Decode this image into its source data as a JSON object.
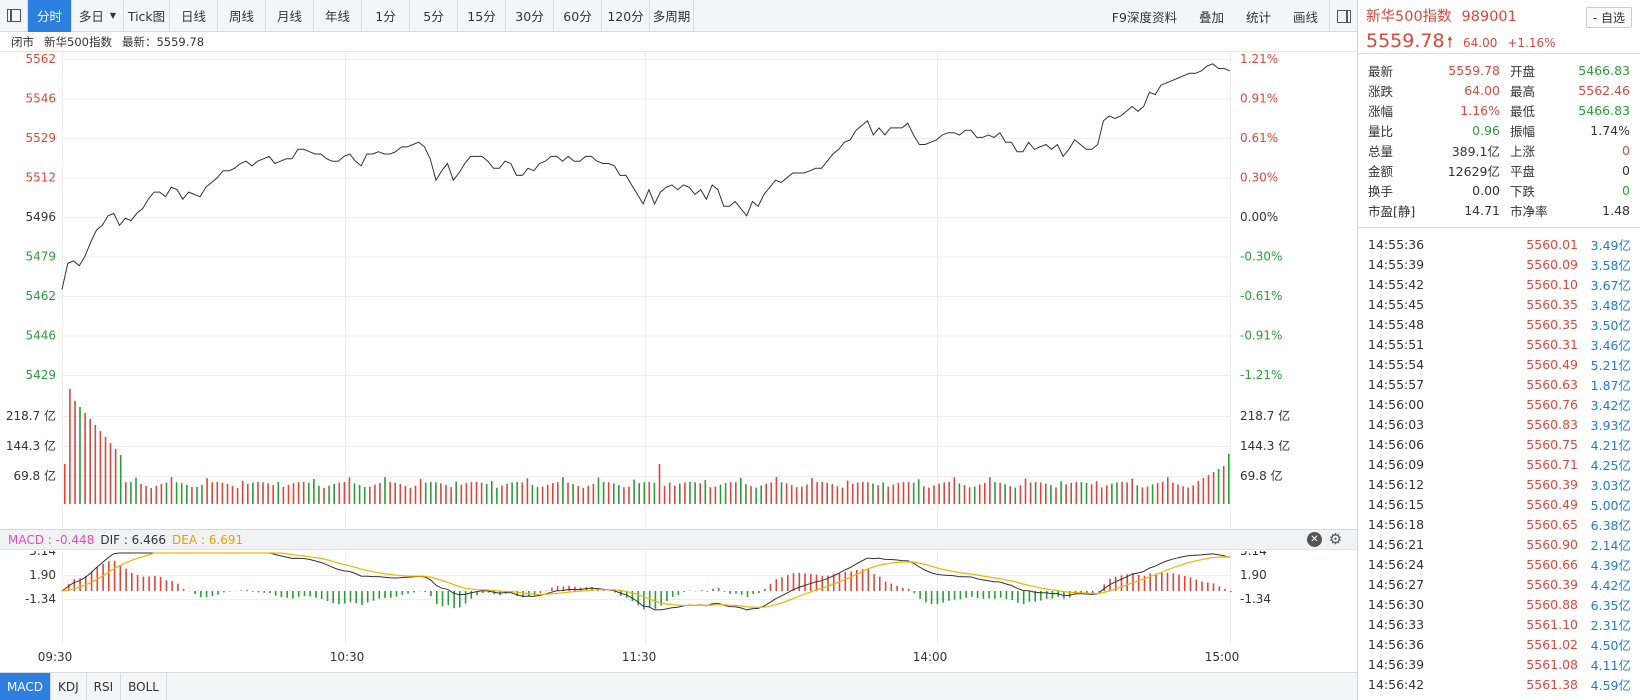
{
  "toolbar": {
    "tabs": [
      "分时",
      "多日",
      "Tick图",
      "日线",
      "周线",
      "月线",
      "年线",
      "1分",
      "5分",
      "15分",
      "30分",
      "60分",
      "120分",
      "多周期"
    ],
    "right_items": [
      "F9深度资料",
      "叠加",
      "统计",
      "画线"
    ]
  },
  "info": {
    "status": "闭市",
    "name": "新华500指数",
    "latest_label": "最新：5559.78"
  },
  "axis": {
    "left_prices": [
      "5562",
      "5546",
      "5529",
      "5512",
      "5496",
      "5479",
      "5462",
      "5446",
      "5429"
    ],
    "right_pcts": [
      "1.21%",
      "0.91%",
      "0.61%",
      "0.30%",
      "0.00%",
      "-0.30%",
      "-0.61%",
      "-0.91%",
      "-1.21%"
    ],
    "vol_labels": [
      "218.7 亿",
      "144.3 亿",
      "69.8 亿"
    ],
    "macd_labels": [
      "5.14",
      "1.90",
      "-1.34"
    ],
    "times": [
      "09:30",
      "10:30",
      "11:30",
      "14:00",
      "15:00"
    ]
  },
  "macd_bar": {
    "macd": "MACD : -0.448",
    "dif": "DIF : 6.466",
    "dea": "DEA : 6.691"
  },
  "bottom_tabs": [
    "MACD",
    "KDJ",
    "RSI",
    "BOLL"
  ],
  "panel": {
    "name": "新华500指数",
    "code": "989001",
    "fav_label": "- 自选",
    "price": "5559.78",
    "change": "64.00",
    "change_pct": "+1.16%",
    "quote": [
      {
        "l1": "最新",
        "v1": "5559.78",
        "c1": "red",
        "l2": "开盘",
        "v2": "5466.83",
        "c2": "green"
      },
      {
        "l1": "涨跌",
        "v1": "64.00",
        "c1": "red",
        "l2": "最高",
        "v2": "5562.46",
        "c2": "red"
      },
      {
        "l1": "涨幅",
        "v1": "1.16%",
        "c1": "red",
        "l2": "最低",
        "v2": "5466.83",
        "c2": "green"
      },
      {
        "l1": "量比",
        "v1": "0.96",
        "c1": "green",
        "l2": "振幅",
        "v2": "1.74%",
        "c2": ""
      },
      {
        "l1": "总量",
        "v1": "389.1亿",
        "c1": "",
        "l2": "上涨",
        "v2": "0",
        "c2": "red"
      },
      {
        "l1": "金额",
        "v1": "12629亿",
        "c1": "",
        "l2": "平盘",
        "v2": "0",
        "c2": ""
      },
      {
        "l1": "换手",
        "v1": "0.00",
        "c1": "",
        "l2": "下跌",
        "v2": "0",
        "c2": "green"
      },
      {
        "l1": "市盈[静]",
        "v1": "14.71",
        "c1": "",
        "l2": "市净率",
        "v2": "1.48",
        "c2": ""
      }
    ],
    "ticks": [
      {
        "t": "14:55:36",
        "p": "5560.01",
        "v": "3.49亿"
      },
      {
        "t": "14:55:39",
        "p": "5560.09",
        "v": "3.58亿"
      },
      {
        "t": "14:55:42",
        "p": "5560.10",
        "v": "3.67亿"
      },
      {
        "t": "14:55:45",
        "p": "5560.35",
        "v": "3.48亿"
      },
      {
        "t": "14:55:48",
        "p": "5560.35",
        "v": "3.50亿"
      },
      {
        "t": "14:55:51",
        "p": "5560.31",
        "v": "3.46亿"
      },
      {
        "t": "14:55:54",
        "p": "5560.49",
        "v": "5.21亿"
      },
      {
        "t": "14:55:57",
        "p": "5560.63",
        "v": "1.87亿"
      },
      {
        "t": "14:56:00",
        "p": "5560.76",
        "v": "3.42亿"
      },
      {
        "t": "14:56:03",
        "p": "5560.83",
        "v": "3.93亿"
      },
      {
        "t": "14:56:06",
        "p": "5560.75",
        "v": "4.21亿"
      },
      {
        "t": "14:56:09",
        "p": "5560.71",
        "v": "4.25亿"
      },
      {
        "t": "14:56:12",
        "p": "5560.39",
        "v": "3.03亿"
      },
      {
        "t": "14:56:15",
        "p": "5560.49",
        "v": "5.00亿"
      },
      {
        "t": "14:56:18",
        "p": "5560.65",
        "v": "6.38亿"
      },
      {
        "t": "14:56:21",
        "p": "5560.90",
        "v": "2.14亿"
      },
      {
        "t": "14:56:24",
        "p": "5560.66",
        "v": "4.39亿"
      },
      {
        "t": "14:56:27",
        "p": "5560.39",
        "v": "4.42亿"
      },
      {
        "t": "14:56:30",
        "p": "5560.88",
        "v": "6.35亿"
      },
      {
        "t": "14:56:33",
        "p": "5561.10",
        "v": "2.31亿"
      },
      {
        "t": "14:56:36",
        "p": "5561.02",
        "v": "4.50亿"
      },
      {
        "t": "14:56:39",
        "p": "5561.08",
        "v": "4.11亿"
      },
      {
        "t": "14:56:42",
        "p": "5561.38",
        "v": "4.59亿"
      }
    ]
  },
  "colors": {
    "up": "#e0453a",
    "down": "#2a9d36",
    "accent": "#2d7fe0",
    "price_line": "#333333",
    "dea_line": "#f0b400",
    "macd_label": "#e64bb4"
  },
  "chart_data": {
    "type": "line",
    "base_price": 5495.78,
    "price_range": [
      5429,
      5562
    ],
    "price_points": [
      5465,
      5476,
      5477,
      5475,
      5479,
      5485,
      5490,
      5492,
      5496,
      5497,
      5492,
      5495,
      5494,
      5497,
      5499,
      5503,
      5506,
      5506,
      5504,
      5508,
      5507,
      5503,
      5506,
      5505,
      5504,
      5508,
      5510,
      5512,
      5515,
      5515,
      5516,
      5518,
      5519,
      5517,
      5519,
      5520,
      5521,
      5518,
      5519,
      5520,
      5520,
      5524,
      5524,
      5523,
      5522,
      5522,
      5520,
      5519,
      5519,
      5521,
      5522,
      5519,
      5517,
      5522,
      5522,
      5523,
      5522,
      5522,
      5523,
      5525,
      5525,
      5526,
      5527,
      5525,
      5520,
      5511,
      5515,
      5518,
      5511,
      5514,
      5518,
      5521,
      5521,
      5521,
      5519,
      5516,
      5516,
      5519,
      5518,
      5513,
      5513,
      5516,
      5515,
      5518,
      5519,
      5521,
      5521,
      5519,
      5521,
      5519,
      5519,
      5521,
      5521,
      5519,
      5518,
      5518,
      5517,
      5513,
      5513,
      5509,
      5505,
      5501,
      5507,
      5501,
      5506,
      5508,
      5509,
      5507,
      5509,
      5508,
      5505,
      5507,
      5503,
      5509,
      5507,
      5500,
      5500,
      5502,
      5499,
      5496,
      5502,
      5500,
      5505,
      5508,
      5511,
      5510,
      5512,
      5514,
      5514,
      5514,
      5515,
      5516,
      5516,
      5519,
      5522,
      5524,
      5527,
      5528,
      5532,
      5534,
      5536,
      5530,
      5533,
      5530,
      5533,
      5533,
      5533,
      5535,
      5530,
      5526,
      5526,
      5527,
      5528,
      5530,
      5531,
      5531,
      5530,
      5532,
      5532,
      5529,
      5529,
      5530,
      5529,
      5531,
      5527,
      5527,
      5523,
      5523,
      5527,
      5524,
      5525,
      5526,
      5524,
      5526,
      5521,
      5524,
      5528,
      5526,
      5524,
      5524,
      5526,
      5536,
      5538,
      5537,
      5538,
      5540,
      5542,
      5540,
      5542,
      5548,
      5547,
      5551,
      5552,
      5553,
      5554,
      5555,
      5556,
      5556,
      5557,
      5559,
      5560,
      5558,
      5558,
      5557
    ]
  }
}
